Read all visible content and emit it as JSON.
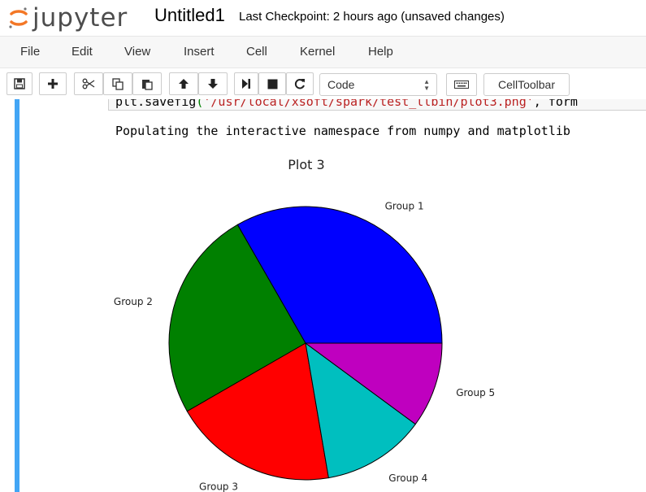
{
  "header": {
    "logo_text": "jupyter",
    "notebook_name": "Untitled1",
    "checkpoint": "Last Checkpoint: 2 hours ago (unsaved changes)"
  },
  "menubar": {
    "items": [
      "File",
      "Edit",
      "View",
      "Insert",
      "Cell",
      "Kernel",
      "Help"
    ]
  },
  "toolbar": {
    "buttons": [
      {
        "name": "save-button",
        "icon": "floppy-disk-icon"
      },
      {
        "name": "insert-cell-button",
        "icon": "plus-icon"
      },
      {
        "name": "cut-button",
        "icon": "scissors-icon"
      },
      {
        "name": "copy-button",
        "icon": "copy-icon"
      },
      {
        "name": "paste-button",
        "icon": "paste-icon"
      },
      {
        "name": "move-up-button",
        "icon": "arrow-up-icon"
      },
      {
        "name": "move-down-button",
        "icon": "arrow-down-icon"
      },
      {
        "name": "run-button",
        "icon": "step-forward-icon"
      },
      {
        "name": "interrupt-button",
        "icon": "stop-icon"
      },
      {
        "name": "restart-button",
        "icon": "refresh-icon"
      },
      {
        "name": "command-palette-button",
        "icon": "keyboard-icon"
      }
    ],
    "cell_type": "Code",
    "celltoolbar_label": "CellToolbar"
  },
  "cell": {
    "code_fn": "plt.savefig",
    "code_open": "(",
    "code_string": "'/usr/local/xsoft/spark/test_llbin/plot3.png'",
    "code_rest": ", form",
    "stdout": "Populating the interactive namespace from numpy and matplotlib"
  },
  "chart_data": {
    "type": "pie",
    "title": "Plot 3",
    "labels": [
      "Group 1",
      "Group 2",
      "Group 3",
      "Group 4",
      "Group 5"
    ],
    "values": [
      33.3,
      25.0,
      19.4,
      12.2,
      10.1
    ],
    "colors": [
      "#0000ff",
      "#008000",
      "#ff0000",
      "#00bfbf",
      "#bf00bf"
    ],
    "start_angle_deg": 0,
    "direction": "counterclockwise"
  }
}
